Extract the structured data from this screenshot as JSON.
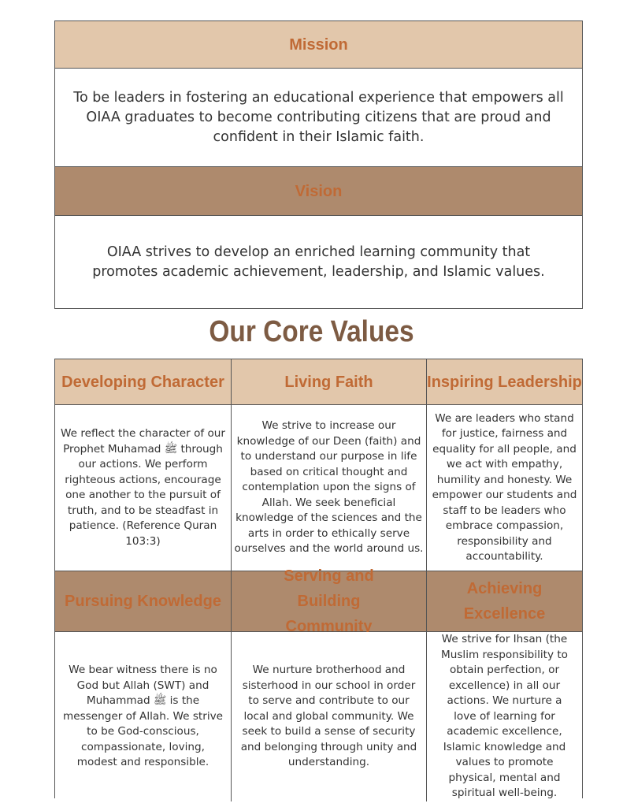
{
  "mission": {
    "heading": "Mission",
    "text": "To be leaders in fostering an educational experience that empowers all OIAA graduates to become contributing citizens that are proud and confident in their Islamic faith."
  },
  "vision": {
    "heading": "Vision",
    "text": "OIAA strives to develop an enriched learning community that promotes academic achievement, leadership, and Islamic values."
  },
  "core_values": {
    "title": "Our Core Values",
    "items": [
      {
        "heading": "Developing Character",
        "text": "We reflect the character of our Prophet Muhamad ﷺ through our actions. We perform righteous actions, encourage one another to the pursuit of truth, and to be steadfast in patience. (Reference Quran 103:3)"
      },
      {
        "heading": "Living Faith",
        "text": "We strive to increase our knowledge of our Deen (faith) and to understand our purpose in life based on critical thought and contemplation upon the signs of Allah. We seek beneficial knowledge of the sciences and the arts in order to ethically serve ourselves and the world around us."
      },
      {
        "heading": "Inspiring Leadership",
        "text": "We are leaders who stand for justice, fairness and equality for all people, and we act with empathy, humility and honesty. We empower our students and staff to be leaders who embrace compassion, responsibility and accountability."
      },
      {
        "heading": "Pursuing Knowledge",
        "text": "We bear witness there is no God but Allah (SWT) and Muhammad ﷺ is the messenger of Allah. We strive to be God-conscious, compassionate, loving, modest and responsible."
      },
      {
        "heading": "Serving and Building Community",
        "text": "We nurture brotherhood and sisterhood in our school in order to serve and contribute to our local and global community. We seek to build a sense of security and belonging through unity and understanding."
      },
      {
        "heading": "Achieving Excellence",
        "text": "We strive for Ihsan (the Muslim responsibility to obtain perfection, or excellence) in all our actions. We nurture a love of learning for academic excellence, Islamic knowledge and values to promote physical, mental and spiritual well-being."
      }
    ]
  },
  "colors": {
    "light_header": "#e2c7ab",
    "dark_header": "#ae8a6d",
    "heading_text": "#c06a35",
    "title_text": "#7d5b43"
  }
}
